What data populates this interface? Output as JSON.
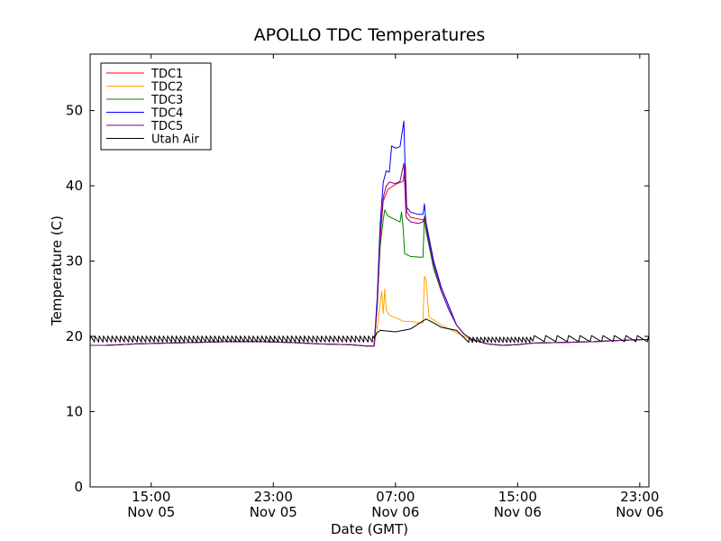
{
  "chart_data": {
    "type": "line",
    "title": "APOLLO TDC Temperatures",
    "xlabel": "Date (GMT)",
    "ylabel": "Temperature (C)",
    "x_unit": "hours since Nov 05 00:00 GMT",
    "xlim": [
      11.0,
      47.6
    ],
    "ylim": [
      0,
      57.5
    ],
    "grid": false,
    "legend_position": "top-left",
    "y_ticks": [
      {
        "value": 0,
        "label": "0"
      },
      {
        "value": 10,
        "label": "10"
      },
      {
        "value": 20,
        "label": "20"
      },
      {
        "value": 30,
        "label": "30"
      },
      {
        "value": 40,
        "label": "40"
      },
      {
        "value": 50,
        "label": "50"
      }
    ],
    "x_ticks": [
      {
        "value": 15,
        "line1": "15:00",
        "line2": "Nov 05"
      },
      {
        "value": 23,
        "line1": "23:00",
        "line2": "Nov 05"
      },
      {
        "value": 31,
        "line1": "07:00",
        "line2": "Nov 06"
      },
      {
        "value": 39,
        "line1": "15:00",
        "line2": "Nov 06"
      },
      {
        "value": 47,
        "line1": "23:00",
        "line2": "Nov 06"
      }
    ],
    "series": [
      {
        "name": "TDC1",
        "color": "#ff0000",
        "points": [
          [
            11,
            18.8
          ],
          [
            12,
            18.8
          ],
          [
            13,
            18.9
          ],
          [
            14,
            19.0
          ],
          [
            16,
            19.1
          ],
          [
            18,
            19.2
          ],
          [
            20,
            19.3
          ],
          [
            22,
            19.3
          ],
          [
            24,
            19.2
          ],
          [
            26,
            19.0
          ],
          [
            28,
            18.9
          ],
          [
            29.2,
            18.7
          ],
          [
            29.6,
            18.7
          ],
          [
            29.8,
            24.0
          ],
          [
            30.0,
            33.0
          ],
          [
            30.2,
            38.0
          ],
          [
            30.5,
            39.5
          ],
          [
            31.0,
            40.2
          ],
          [
            31.5,
            40.6
          ],
          [
            31.65,
            42.8
          ],
          [
            31.75,
            36.5
          ],
          [
            32.0,
            35.8
          ],
          [
            32.5,
            35.6
          ],
          [
            32.8,
            35.5
          ],
          [
            33.0,
            35.2
          ],
          [
            33.5,
            30.0
          ],
          [
            34.0,
            26.5
          ],
          [
            34.5,
            24.0
          ],
          [
            35.0,
            21.5
          ],
          [
            35.5,
            20.3
          ],
          [
            36.0,
            19.6
          ],
          [
            37.0,
            19.0
          ],
          [
            38.0,
            18.8
          ],
          [
            39.0,
            18.9
          ],
          [
            40.0,
            19.1
          ],
          [
            42.0,
            19.2
          ],
          [
            44.0,
            19.3
          ],
          [
            46.0,
            19.5
          ],
          [
            47.6,
            19.6
          ]
        ]
      },
      {
        "name": "TDC2",
        "color": "#ffa500",
        "points": [
          [
            11,
            18.8
          ],
          [
            12,
            18.8
          ],
          [
            13,
            18.9
          ],
          [
            14,
            19.0
          ],
          [
            16,
            19.1
          ],
          [
            18,
            19.2
          ],
          [
            20,
            19.3
          ],
          [
            22,
            19.3
          ],
          [
            24,
            19.2
          ],
          [
            26,
            19.0
          ],
          [
            28,
            18.9
          ],
          [
            29.2,
            18.7
          ],
          [
            29.6,
            18.7
          ],
          [
            29.8,
            21.0
          ],
          [
            30.0,
            24.5
          ],
          [
            30.1,
            26.0
          ],
          [
            30.2,
            23.0
          ],
          [
            30.3,
            26.3
          ],
          [
            30.4,
            23.5
          ],
          [
            30.6,
            22.8
          ],
          [
            31.0,
            22.5
          ],
          [
            31.5,
            22.0
          ],
          [
            32.0,
            22.0
          ],
          [
            32.5,
            21.8
          ],
          [
            32.8,
            21.8
          ],
          [
            32.9,
            28.0
          ],
          [
            33.0,
            27.5
          ],
          [
            33.2,
            22.5
          ],
          [
            33.5,
            22.2
          ],
          [
            34.0,
            21.5
          ],
          [
            34.5,
            21.0
          ],
          [
            35.0,
            20.5
          ],
          [
            35.5,
            20.0
          ],
          [
            36.0,
            19.5
          ],
          [
            37.0,
            19.0
          ],
          [
            38.0,
            18.8
          ],
          [
            39.0,
            18.9
          ],
          [
            40.0,
            19.1
          ],
          [
            42.0,
            19.2
          ],
          [
            44.0,
            19.3
          ],
          [
            46.0,
            19.5
          ],
          [
            47.6,
            19.6
          ]
        ]
      },
      {
        "name": "TDC3",
        "color": "#008000",
        "points": [
          [
            11,
            18.8
          ],
          [
            12,
            18.8
          ],
          [
            13,
            18.9
          ],
          [
            14,
            19.0
          ],
          [
            16,
            19.1
          ],
          [
            18,
            19.2
          ],
          [
            20,
            19.3
          ],
          [
            22,
            19.3
          ],
          [
            24,
            19.2
          ],
          [
            26,
            19.0
          ],
          [
            28,
            18.9
          ],
          [
            29.2,
            18.7
          ],
          [
            29.6,
            18.7
          ],
          [
            29.8,
            24.0
          ],
          [
            30.0,
            32.0
          ],
          [
            30.2,
            35.5
          ],
          [
            30.3,
            36.8
          ],
          [
            30.5,
            36.0
          ],
          [
            31.0,
            35.5
          ],
          [
            31.3,
            35.2
          ],
          [
            31.4,
            36.5
          ],
          [
            31.5,
            34.5
          ],
          [
            31.6,
            31.0
          ],
          [
            32.0,
            30.6
          ],
          [
            32.8,
            30.5
          ],
          [
            32.9,
            36.0
          ],
          [
            33.0,
            34.0
          ],
          [
            33.5,
            29.0
          ],
          [
            34.0,
            26.0
          ],
          [
            34.5,
            23.5
          ],
          [
            35.0,
            21.5
          ],
          [
            35.5,
            20.3
          ],
          [
            36.0,
            19.6
          ],
          [
            37.0,
            19.0
          ],
          [
            38.0,
            18.8
          ],
          [
            39.0,
            18.9
          ],
          [
            40.0,
            19.1
          ],
          [
            42.0,
            19.2
          ],
          [
            44.0,
            19.3
          ],
          [
            46.0,
            19.5
          ],
          [
            47.6,
            19.6
          ]
        ]
      },
      {
        "name": "TDC4",
        "color": "#0000ff",
        "points": [
          [
            11,
            18.8
          ],
          [
            12,
            18.8
          ],
          [
            13,
            18.9
          ],
          [
            14,
            19.0
          ],
          [
            16,
            19.1
          ],
          [
            18,
            19.2
          ],
          [
            20,
            19.3
          ],
          [
            22,
            19.3
          ],
          [
            24,
            19.2
          ],
          [
            26,
            19.0
          ],
          [
            28,
            18.9
          ],
          [
            29.2,
            18.7
          ],
          [
            29.6,
            18.7
          ],
          [
            29.8,
            25.0
          ],
          [
            30.0,
            35.0
          ],
          [
            30.2,
            40.5
          ],
          [
            30.4,
            42.0
          ],
          [
            30.6,
            41.8
          ],
          [
            30.75,
            45.3
          ],
          [
            31.0,
            45.0
          ],
          [
            31.3,
            45.2
          ],
          [
            31.55,
            48.6
          ],
          [
            31.7,
            37.2
          ],
          [
            32.0,
            36.5
          ],
          [
            32.5,
            36.2
          ],
          [
            32.8,
            36.2
          ],
          [
            32.9,
            37.6
          ],
          [
            33.0,
            35.0
          ],
          [
            33.5,
            30.0
          ],
          [
            34.0,
            26.5
          ],
          [
            34.5,
            24.0
          ],
          [
            35.0,
            21.5
          ],
          [
            35.5,
            20.3
          ],
          [
            36.0,
            19.6
          ],
          [
            37.0,
            19.0
          ],
          [
            38.0,
            18.8
          ],
          [
            39.0,
            18.9
          ],
          [
            40.0,
            19.1
          ],
          [
            42.0,
            19.2
          ],
          [
            44.0,
            19.3
          ],
          [
            46.0,
            19.5
          ],
          [
            47.6,
            19.6
          ]
        ]
      },
      {
        "name": "TDC5",
        "color": "#800080",
        "points": [
          [
            11,
            18.8
          ],
          [
            12,
            18.8
          ],
          [
            13,
            18.9
          ],
          [
            14,
            19.0
          ],
          [
            16,
            19.1
          ],
          [
            18,
            19.2
          ],
          [
            20,
            19.3
          ],
          [
            22,
            19.3
          ],
          [
            24,
            19.2
          ],
          [
            26,
            19.0
          ],
          [
            28,
            18.9
          ],
          [
            29.2,
            18.7
          ],
          [
            29.6,
            18.7
          ],
          [
            29.8,
            24.0
          ],
          [
            30.0,
            33.5
          ],
          [
            30.2,
            38.5
          ],
          [
            30.4,
            40.0
          ],
          [
            30.6,
            40.5
          ],
          [
            31.0,
            40.3
          ],
          [
            31.3,
            40.6
          ],
          [
            31.55,
            43.0
          ],
          [
            31.7,
            35.8
          ],
          [
            32.0,
            35.2
          ],
          [
            32.5,
            35.0
          ],
          [
            32.8,
            35.2
          ],
          [
            32.9,
            35.8
          ],
          [
            33.0,
            34.5
          ],
          [
            33.5,
            29.5
          ],
          [
            34.0,
            26.0
          ],
          [
            34.5,
            23.5
          ],
          [
            35.0,
            21.5
          ],
          [
            35.5,
            20.3
          ],
          [
            36.0,
            19.6
          ],
          [
            37.0,
            19.0
          ],
          [
            38.0,
            18.8
          ],
          [
            39.0,
            18.9
          ],
          [
            40.0,
            19.1
          ],
          [
            42.0,
            19.2
          ],
          [
            44.0,
            19.3
          ],
          [
            46.0,
            19.5
          ],
          [
            47.6,
            19.6
          ]
        ]
      },
      {
        "name": "Utah Air",
        "color": "#000000",
        "base_points": [
          [
            11,
            19.6
          ],
          [
            29.6,
            19.6
          ],
          [
            29.8,
            20.5
          ],
          [
            30.0,
            20.8
          ],
          [
            31.0,
            20.6
          ],
          [
            32.0,
            21.0
          ],
          [
            33.0,
            22.3
          ],
          [
            33.5,
            21.8
          ],
          [
            34.0,
            21.2
          ],
          [
            35.0,
            20.8
          ],
          [
            36.0,
            20.2
          ],
          [
            37.0,
            19.7
          ],
          [
            39.0,
            19.3
          ],
          [
            42.0,
            19.4
          ],
          [
            45.0,
            19.5
          ],
          [
            47.6,
            19.6
          ]
        ],
        "oscillation": [
          {
            "start": 11.0,
            "end": 29.6,
            "period": 0.28,
            "low": 19.25,
            "high": 20.05
          },
          {
            "start": 35.8,
            "end": 40.0,
            "period": 0.25,
            "low": 19.2,
            "high": 19.9
          },
          {
            "start": 40.0,
            "end": 47.6,
            "period": 0.75,
            "low": 19.3,
            "high": 20.1
          }
        ]
      }
    ]
  }
}
